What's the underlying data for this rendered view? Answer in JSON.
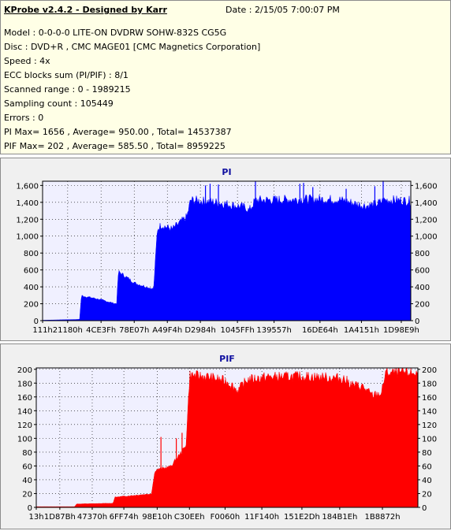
{
  "info": {
    "title": "KProbe v2.4.2 - Designed by Karr",
    "date": "Date : 2/15/05 7:00:07 PM",
    "lines": [
      "Model : 0-0-0-0 LITE-ON DVDRW SOHW-832S  CG5G",
      "Disc : DVD+R , CMC MAGE01 [CMC Magnetics Corporation]",
      "Speed : 4x",
      "ECC blocks sum (PI/PIF) : 8/1",
      "Scanned range : 0 - 1989215",
      "Sampling count : 105449",
      "Errors : 0",
      "PI Max= 1656 , Average= 950.00 , Total= 14537387",
      "PIF Max= 202 , Average= 585.50 , Total= 8959225"
    ]
  },
  "chart_data": [
    {
      "type": "area",
      "title": "PI",
      "color": "#0000ff",
      "background": "#f0f0ff",
      "ylim": [
        0,
        1650
      ],
      "yticks": [
        0,
        200,
        400,
        600,
        800,
        1000,
        1200,
        1400,
        1600
      ],
      "ytick_labels": [
        "0",
        "200",
        "400",
        "600",
        "800",
        "1,000",
        "1,200",
        "1,400",
        "1,600"
      ],
      "xlim": [
        0,
        1989215
      ],
      "xticks": [
        273,
        135552,
        315967,
        495111,
        674036,
        852356,
        1052671,
        1250647,
        1498724,
        1722705,
        1937897
      ],
      "xtick_labels": [
        "111h",
        "21180h",
        "4CE3Fh",
        "78E07h",
        "A49F4h",
        "D2984h",
        "1045FFh",
        "139557h",
        "16DE64h",
        "1A4151h",
        "1D98E9h"
      ],
      "x": [
        0,
        100000,
        200000,
        210000,
        300000,
        400000,
        410000,
        500000,
        600000,
        620000,
        640000,
        700000,
        780000,
        800000,
        850000,
        900000,
        950000,
        1000000,
        1100000,
        1115000,
        1150000,
        1200000,
        1300000,
        1400000,
        1500000,
        1600000,
        1650000,
        1700000,
        1750000,
        1800000,
        1850000,
        1900000,
        1989215
      ],
      "values": [
        5,
        10,
        15,
        300,
        260,
        200,
        590,
        450,
        380,
        1100,
        1150,
        1100,
        1250,
        1450,
        1440,
        1430,
        1420,
        1400,
        1360,
        1320,
        1450,
        1450,
        1455,
        1460,
        1460,
        1455,
        1430,
        1400,
        1380,
        1400,
        1450,
        1450,
        1440
      ],
      "spikes": [
        [
          880000,
          1600
        ],
        [
          905000,
          1620
        ],
        [
          950000,
          1610
        ],
        [
          1150000,
          1650
        ],
        [
          1390000,
          1620
        ],
        [
          1410000,
          1630
        ],
        [
          1460000,
          1580
        ],
        [
          1640000,
          1560
        ],
        [
          1795000,
          1590
        ],
        [
          1840000,
          1656
        ]
      ]
    },
    {
      "type": "area",
      "title": "PIF",
      "color": "#ff0000",
      "background": "#f0f0ff",
      "ylim": [
        0,
        202
      ],
      "yticks": [
        0,
        20,
        40,
        60,
        80,
        100,
        120,
        140,
        160,
        180,
        200
      ],
      "ytick_labels": [
        "0",
        "20",
        "40",
        "60",
        "80",
        "100",
        "120",
        "140",
        "160",
        "180",
        "200"
      ],
      "xlim": [
        0,
        1989215
      ],
      "xticks": [
        19,
        122811,
        291696,
        456564,
        630288,
        798446,
        984160,
        1175872,
        1384749,
        1581806,
        1804402
      ],
      "xtick_labels": [
        "13h",
        "1D87Bh",
        "47370h",
        "6FF74h",
        "98E10h",
        "C30EEh",
        "F0060h",
        "11F140h",
        "151E2Dh",
        "184B1Eh",
        "1B8872h"
      ],
      "x": [
        0,
        200000,
        210000,
        400000,
        410000,
        600000,
        620000,
        700000,
        780000,
        800000,
        900000,
        1000000,
        1050000,
        1100000,
        1200000,
        1400000,
        1600000,
        1650000,
        1700000,
        1750000,
        1800000,
        1820000,
        1989215
      ],
      "values": [
        1,
        1,
        5,
        6,
        15,
        20,
        55,
        60,
        90,
        195,
        192,
        185,
        172,
        188,
        192,
        193,
        190,
        180,
        178,
        165,
        168,
        198,
        198
      ],
      "spikes": [
        [
          650000,
          102
        ],
        [
          730000,
          100
        ],
        [
          760000,
          108
        ],
        [
          1020000,
          162
        ],
        [
          1500000,
          188
        ],
        [
          1930000,
          202
        ]
      ]
    }
  ]
}
